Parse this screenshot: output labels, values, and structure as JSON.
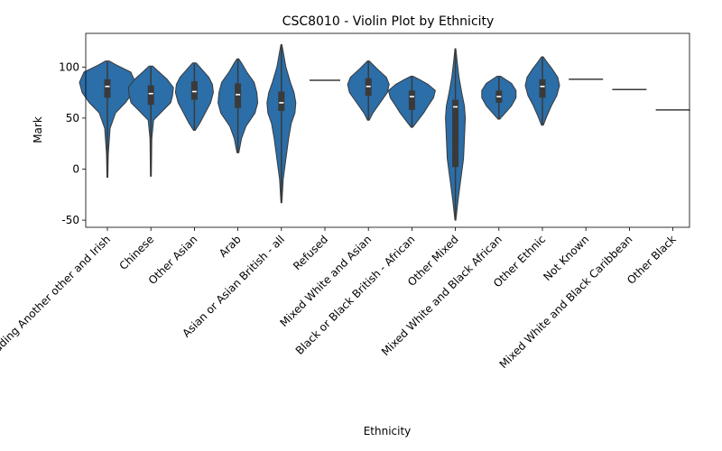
{
  "chart_data": {
    "type": "violin",
    "title": "CSC8010 - Violin Plot by Ethnicity",
    "xlabel": "Ethnicity",
    "ylabel": "Mark",
    "ylim": [
      -57,
      133
    ],
    "yticks": [
      -50,
      0,
      50,
      100
    ],
    "grid": false,
    "legend": "none",
    "colors": {
      "violin": "#2b6ea8",
      "box": "#3a3a3a",
      "median": "#ffffff",
      "axis": "#000000"
    },
    "categories": [
      {
        "label": "White including Another other and Irish",
        "min": -8,
        "max": 106,
        "q1": 70,
        "median": 81,
        "q3": 88,
        "profile": [
          [
            -8,
            0.5
          ],
          [
            15,
            1
          ],
          [
            40,
            3
          ],
          [
            55,
            9
          ],
          [
            65,
            20
          ],
          [
            75,
            28
          ],
          [
            85,
            31
          ],
          [
            95,
            26
          ],
          [
            102,
            10
          ],
          [
            106,
            2
          ]
        ]
      },
      {
        "label": "Chinese",
        "min": -7,
        "max": 101,
        "q1": 63,
        "median": 74,
        "q3": 82,
        "profile": [
          [
            -7,
            0.5
          ],
          [
            30,
            1
          ],
          [
            48,
            3
          ],
          [
            58,
            14
          ],
          [
            65,
            22
          ],
          [
            72,
            24
          ],
          [
            80,
            25
          ],
          [
            88,
            18
          ],
          [
            96,
            8
          ],
          [
            101,
            2
          ]
        ]
      },
      {
        "label": "Other Asian",
        "min": 38,
        "max": 104,
        "q1": 68,
        "median": 76,
        "q3": 86,
        "profile": [
          [
            38,
            1
          ],
          [
            45,
            6
          ],
          [
            55,
            12
          ],
          [
            65,
            18
          ],
          [
            75,
            21
          ],
          [
            83,
            20
          ],
          [
            90,
            16
          ],
          [
            98,
            8
          ],
          [
            104,
            2
          ]
        ]
      },
      {
        "label": "Arab",
        "min": 16,
        "max": 108,
        "q1": 60,
        "median": 73,
        "q3": 84,
        "profile": [
          [
            16,
            1
          ],
          [
            30,
            4
          ],
          [
            42,
            9
          ],
          [
            55,
            19
          ],
          [
            65,
            22
          ],
          [
            75,
            21
          ],
          [
            85,
            18
          ],
          [
            95,
            10
          ],
          [
            104,
            4
          ],
          [
            108,
            1
          ]
        ]
      },
      {
        "label": "Asian or Asian British - all",
        "min": -33,
        "max": 122,
        "q1": 57,
        "median": 65,
        "q3": 76,
        "profile": [
          [
            -33,
            0.5
          ],
          [
            -10,
            2
          ],
          [
            10,
            5
          ],
          [
            30,
            8
          ],
          [
            45,
            11
          ],
          [
            55,
            15
          ],
          [
            65,
            16
          ],
          [
            75,
            14
          ],
          [
            85,
            10
          ],
          [
            100,
            5
          ],
          [
            115,
            2
          ],
          [
            122,
            0.5
          ]
        ]
      },
      {
        "label": "Refused",
        "value": 87,
        "width": 34
      },
      {
        "label": "Mixed White and Asian",
        "min": 48,
        "max": 106,
        "q1": 72,
        "median": 81,
        "q3": 89,
        "profile": [
          [
            48,
            1
          ],
          [
            55,
            5
          ],
          [
            65,
            13
          ],
          [
            75,
            21
          ],
          [
            83,
            23
          ],
          [
            90,
            20
          ],
          [
            98,
            10
          ],
          [
            106,
            1
          ]
        ]
      },
      {
        "label": "Black or Black British - African",
        "min": 41,
        "max": 91,
        "q1": 58,
        "median": 71,
        "q3": 77,
        "profile": [
          [
            41,
            1
          ],
          [
            48,
            7
          ],
          [
            55,
            13
          ],
          [
            62,
            18
          ],
          [
            70,
            24
          ],
          [
            77,
            26
          ],
          [
            83,
            18
          ],
          [
            88,
            8
          ],
          [
            91,
            1
          ]
        ]
      },
      {
        "label": "Other Mixed",
        "min": -50,
        "max": 118,
        "q1": 2,
        "median": 61,
        "q3": 68,
        "profile": [
          [
            -50,
            0.5
          ],
          [
            -30,
            3
          ],
          [
            -10,
            6
          ],
          [
            10,
            9
          ],
          [
            30,
            10
          ],
          [
            50,
            11
          ],
          [
            62,
            10
          ],
          [
            75,
            7
          ],
          [
            90,
            4
          ],
          [
            105,
            2
          ],
          [
            118,
            0.5
          ]
        ]
      },
      {
        "label": "Mixed White and Black African",
        "min": 49,
        "max": 91,
        "q1": 65,
        "median": 71,
        "q3": 77,
        "profile": [
          [
            49,
            1
          ],
          [
            55,
            7
          ],
          [
            62,
            14
          ],
          [
            70,
            19
          ],
          [
            77,
            19
          ],
          [
            84,
            14
          ],
          [
            91,
            2
          ]
        ]
      },
      {
        "label": "Other Ethnic",
        "min": 43,
        "max": 110,
        "q1": 70,
        "median": 81,
        "q3": 88,
        "profile": [
          [
            43,
            1
          ],
          [
            52,
            5
          ],
          [
            62,
            10
          ],
          [
            72,
            16
          ],
          [
            82,
            19
          ],
          [
            90,
            17
          ],
          [
            98,
            11
          ],
          [
            105,
            5
          ],
          [
            110,
            1
          ]
        ]
      },
      {
        "label": "Not Known",
        "value": 88,
        "width": 38
      },
      {
        "label": "Mixed White and Black Caribbean",
        "value": 78,
        "width": 38
      },
      {
        "label": "Other Black",
        "value": 58,
        "width": 38
      }
    ]
  }
}
